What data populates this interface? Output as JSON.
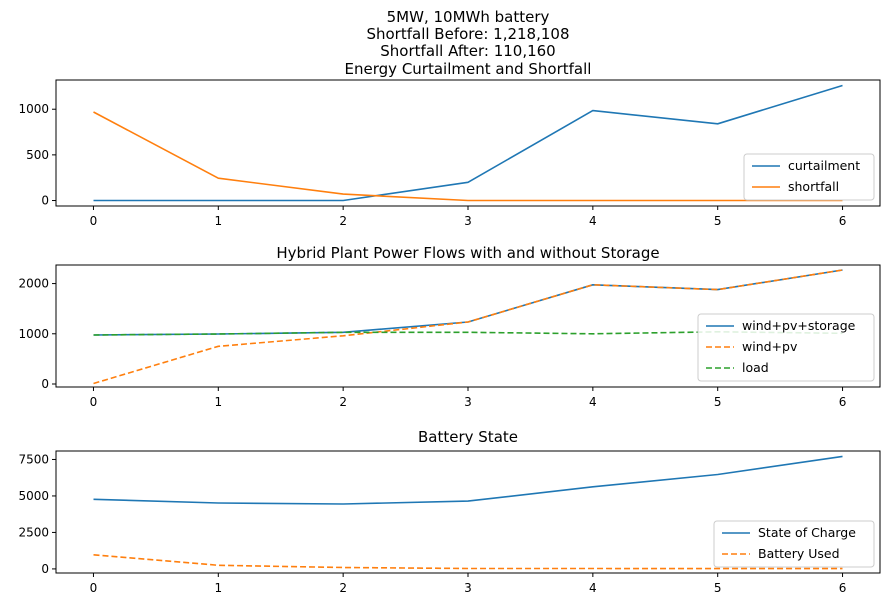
{
  "figure_title": [
    "5MW, 10MWh battery",
    "Shortfall Before: 1,218,108",
    "Shortfall After: 110,160"
  ],
  "chart_data": [
    {
      "type": "line",
      "title": "Energy Curtailment and Shortfall",
      "xlabel": "",
      "ylabel": "",
      "x": [
        0,
        1,
        2,
        3,
        4,
        5,
        6
      ],
      "xlim": [
        -0.3,
        6.3
      ],
      "ylim": [
        -60,
        1320
      ],
      "xticks": [
        0,
        1,
        2,
        3,
        4,
        5,
        6
      ],
      "yticks": [
        0,
        500,
        1000
      ],
      "grid": false,
      "legend_position": "lower-right",
      "series": [
        {
          "name": "curtailment",
          "values": [
            0,
            0,
            0,
            200,
            985,
            840,
            1260
          ],
          "color": "#1f77b4",
          "style": "solid"
        },
        {
          "name": "shortfall",
          "values": [
            970,
            245,
            70,
            0,
            0,
            0,
            0
          ],
          "color": "#ff7f0e",
          "style": "solid"
        }
      ]
    },
    {
      "type": "line",
      "title": "Hybrid Plant Power Flows with and without Storage",
      "xlabel": "",
      "ylabel": "",
      "x": [
        0,
        1,
        2,
        3,
        4,
        5,
        6
      ],
      "xlim": [
        -0.3,
        6.3
      ],
      "ylim": [
        -60,
        2370
      ],
      "xticks": [
        0,
        1,
        2,
        3,
        4,
        5,
        6
      ],
      "yticks": [
        0,
        1000,
        2000
      ],
      "grid": false,
      "legend_position": "lower-right",
      "series": [
        {
          "name": "wind+pv+storage",
          "values": [
            975,
            995,
            1030,
            1235,
            1975,
            1880,
            2270
          ],
          "color": "#1f77b4",
          "style": "solid"
        },
        {
          "name": "wind+pv",
          "values": [
            10,
            750,
            960,
            1235,
            1975,
            1880,
            2270
          ],
          "color": "#ff7f0e",
          "style": "dashed"
        },
        {
          "name": "load",
          "values": [
            975,
            995,
            1030,
            1030,
            1000,
            1040,
            1010
          ],
          "color": "#2ca02c",
          "style": "dashed"
        }
      ]
    },
    {
      "type": "line",
      "title": "Battery State",
      "xlabel": "",
      "ylabel": "",
      "x": [
        0,
        1,
        2,
        3,
        4,
        5,
        6
      ],
      "xlim": [
        -0.3,
        6.3
      ],
      "ylim": [
        -280,
        8080
      ],
      "xticks": [
        0,
        1,
        2,
        3,
        4,
        5,
        6
      ],
      "yticks": [
        0,
        2500,
        5000,
        7500
      ],
      "grid": false,
      "legend_position": "lower-right",
      "series": [
        {
          "name": "State of Charge",
          "values": [
            4770,
            4520,
            4450,
            4650,
            5630,
            6470,
            7710
          ],
          "color": "#1f77b4",
          "style": "solid"
        },
        {
          "name": "Battery Used",
          "values": [
            970,
            250,
            100,
            30,
            25,
            20,
            20
          ],
          "color": "#ff7f0e",
          "style": "dashed"
        }
      ]
    }
  ]
}
